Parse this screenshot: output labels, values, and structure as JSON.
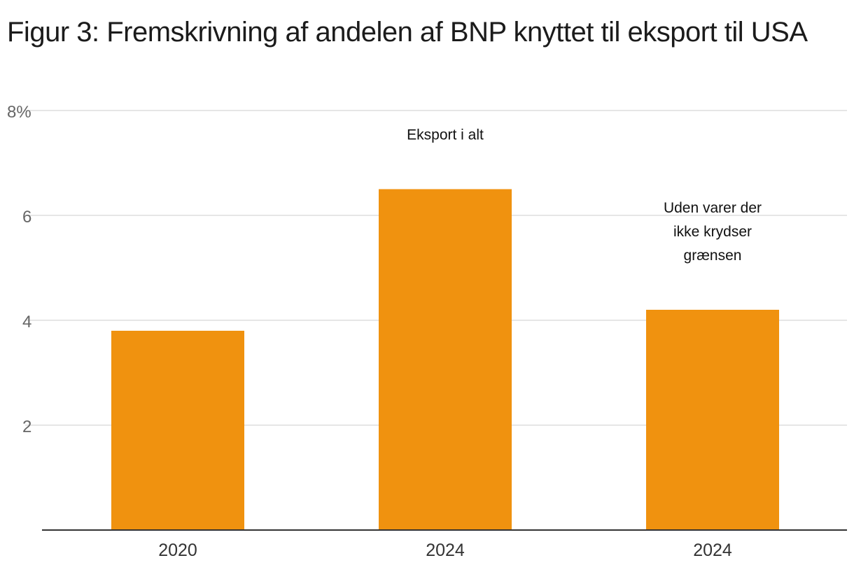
{
  "title": "Figur 3: Fremskrivning af andelen af BNP knyttet til eksport til USA",
  "colors": {
    "bar": "#f0920f",
    "grid": "#dddddd",
    "axis": "#333333",
    "tick_text": "#666666"
  },
  "chart_data": {
    "type": "bar",
    "categories": [
      "2020",
      "2024",
      "2024"
    ],
    "values": [
      3.8,
      6.5,
      4.2
    ],
    "title": "Figur 3: Fremskrivning af andelen af BNP knyttet til eksport til USA",
    "xlabel": "",
    "ylabel": "",
    "ylim": [
      0,
      8
    ],
    "yticks": [
      2,
      4,
      6,
      8
    ],
    "ytick_labels": [
      "2",
      "4",
      "6",
      "8%"
    ],
    "grid": true,
    "legend": "none",
    "annotations": [
      {
        "bar_index": 1,
        "lines": [
          "Eksport i alt"
        ]
      },
      {
        "bar_index": 2,
        "lines": [
          "Uden varer der",
          "ikke krydser",
          "grænsen"
        ]
      }
    ]
  }
}
